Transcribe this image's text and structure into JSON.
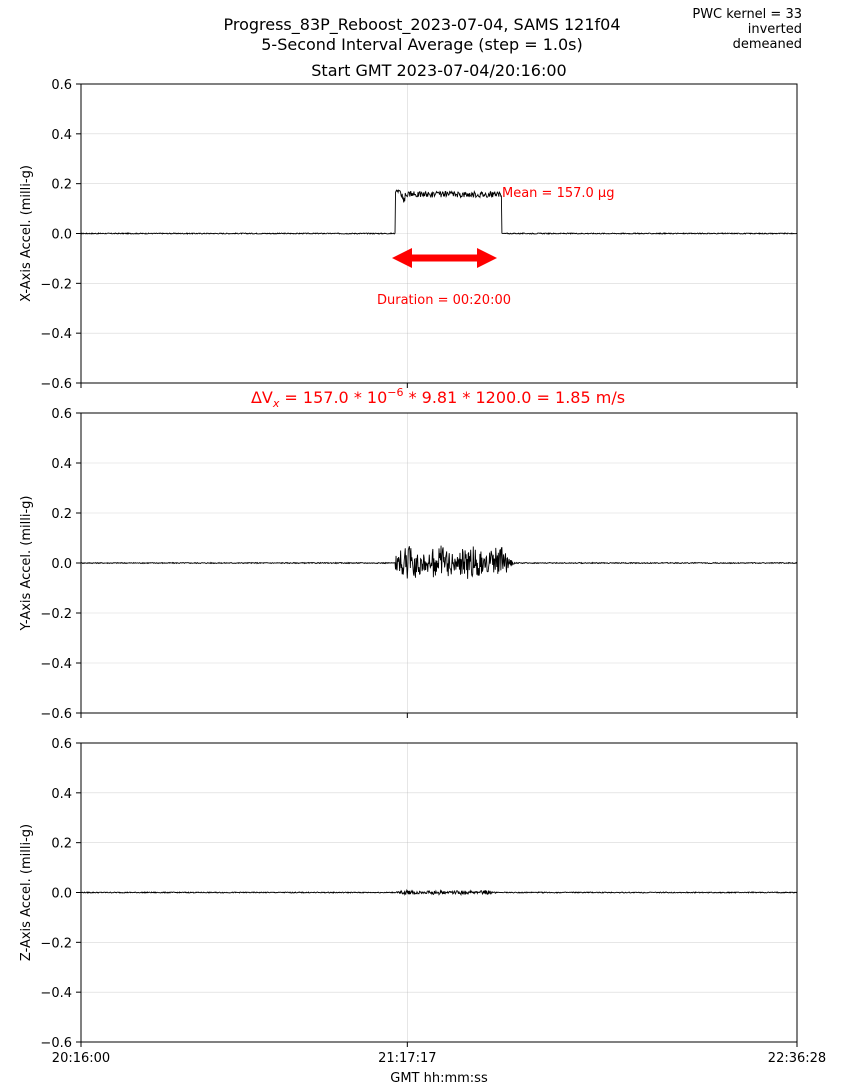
{
  "header": {
    "title_line1": "Progress_83P_Reboost_2023-07-04, SAMS 121f04",
    "title_line2": "5-Second Interval Average (step = 1.0s)",
    "subtitle": "Start GMT 2023-07-04/20:16:00",
    "corner_line1": "PWC kernel = 33",
    "corner_line2": "inverted",
    "corner_line3": "demeaned"
  },
  "annotations": {
    "mean_label": "Mean = 157.0 μg",
    "duration_label": "Duration = 00:20:00",
    "delta_v_prefix": "ΔV",
    "delta_v_sub": "x",
    "delta_v_mid": " = 157.0 * 10",
    "delta_v_exp": "−6",
    "delta_v_suffix": " * 9.81 * 1200.0 = 1.85 m/s",
    "colors": {
      "annotation": "#ff0000",
      "trace": "#000000",
      "grid": "#b0b0b0"
    }
  },
  "chart_data": [
    {
      "type": "line",
      "ylabel": "X-Axis Accel. (milli-g)",
      "ylim": [
        -0.6,
        0.6
      ],
      "yticks": [
        "0.6",
        "0.4",
        "0.2",
        "0.0",
        "−0.2",
        "−0.4",
        "−0.6"
      ],
      "x_range_seconds": [
        0,
        8068
      ],
      "grid": true,
      "series": [
        {
          "x": [
            0,
            3540,
            3545,
            3560,
            3600,
            3660,
            3700,
            4740,
            4760,
            8068
          ],
          "y": [
            0.0,
            0.0,
            0.175,
            0.17,
            0.13,
            0.17,
            0.16,
            0.16,
            0.0,
            0.0
          ]
        }
      ],
      "burst": {
        "start": 3540,
        "end": 4740,
        "level": 0.157,
        "noise": 0.012
      }
    },
    {
      "type": "line",
      "ylabel": "Y-Axis Accel. (milli-g)",
      "ylim": [
        -0.6,
        0.6
      ],
      "yticks": [
        "0.6",
        "0.4",
        "0.2",
        "0.0",
        "−0.2",
        "−0.4",
        "−0.6"
      ],
      "x_range_seconds": [
        0,
        8068
      ],
      "grid": true,
      "series": [
        {
          "x": [
            0,
            3540,
            3700,
            3900,
            4100,
            4300,
            4500,
            4740,
            4900,
            8068
          ],
          "y": [
            0.0,
            0.0,
            0.065,
            -0.075,
            0.06,
            -0.07,
            0.065,
            -0.06,
            0.0,
            0.0
          ]
        }
      ],
      "burst": {
        "start": 3540,
        "end": 4900,
        "amplitude": 0.07
      }
    },
    {
      "type": "line",
      "ylabel": "Z-Axis Accel. (milli-g)",
      "ylim": [
        -0.6,
        0.6
      ],
      "yticks": [
        "0.6",
        "0.4",
        "0.2",
        "0.0",
        "−0.2",
        "−0.4",
        "−0.6"
      ],
      "x_range_seconds": [
        0,
        8068
      ],
      "xlabel": "GMT hh:mm:ss",
      "xticks": [
        "20:16:00",
        "21:17:17",
        "22:36:28"
      ],
      "xtick_seconds": [
        0,
        3677,
        8068
      ],
      "grid": true,
      "series": [
        {
          "x": [
            0,
            3540,
            3800,
            4200,
            4740,
            8068
          ],
          "y": [
            0.0,
            0.0,
            -0.008,
            0.008,
            0.0,
            0.0
          ]
        }
      ],
      "burst": {
        "start": 3540,
        "end": 4740,
        "amplitude": 0.009
      }
    }
  ]
}
